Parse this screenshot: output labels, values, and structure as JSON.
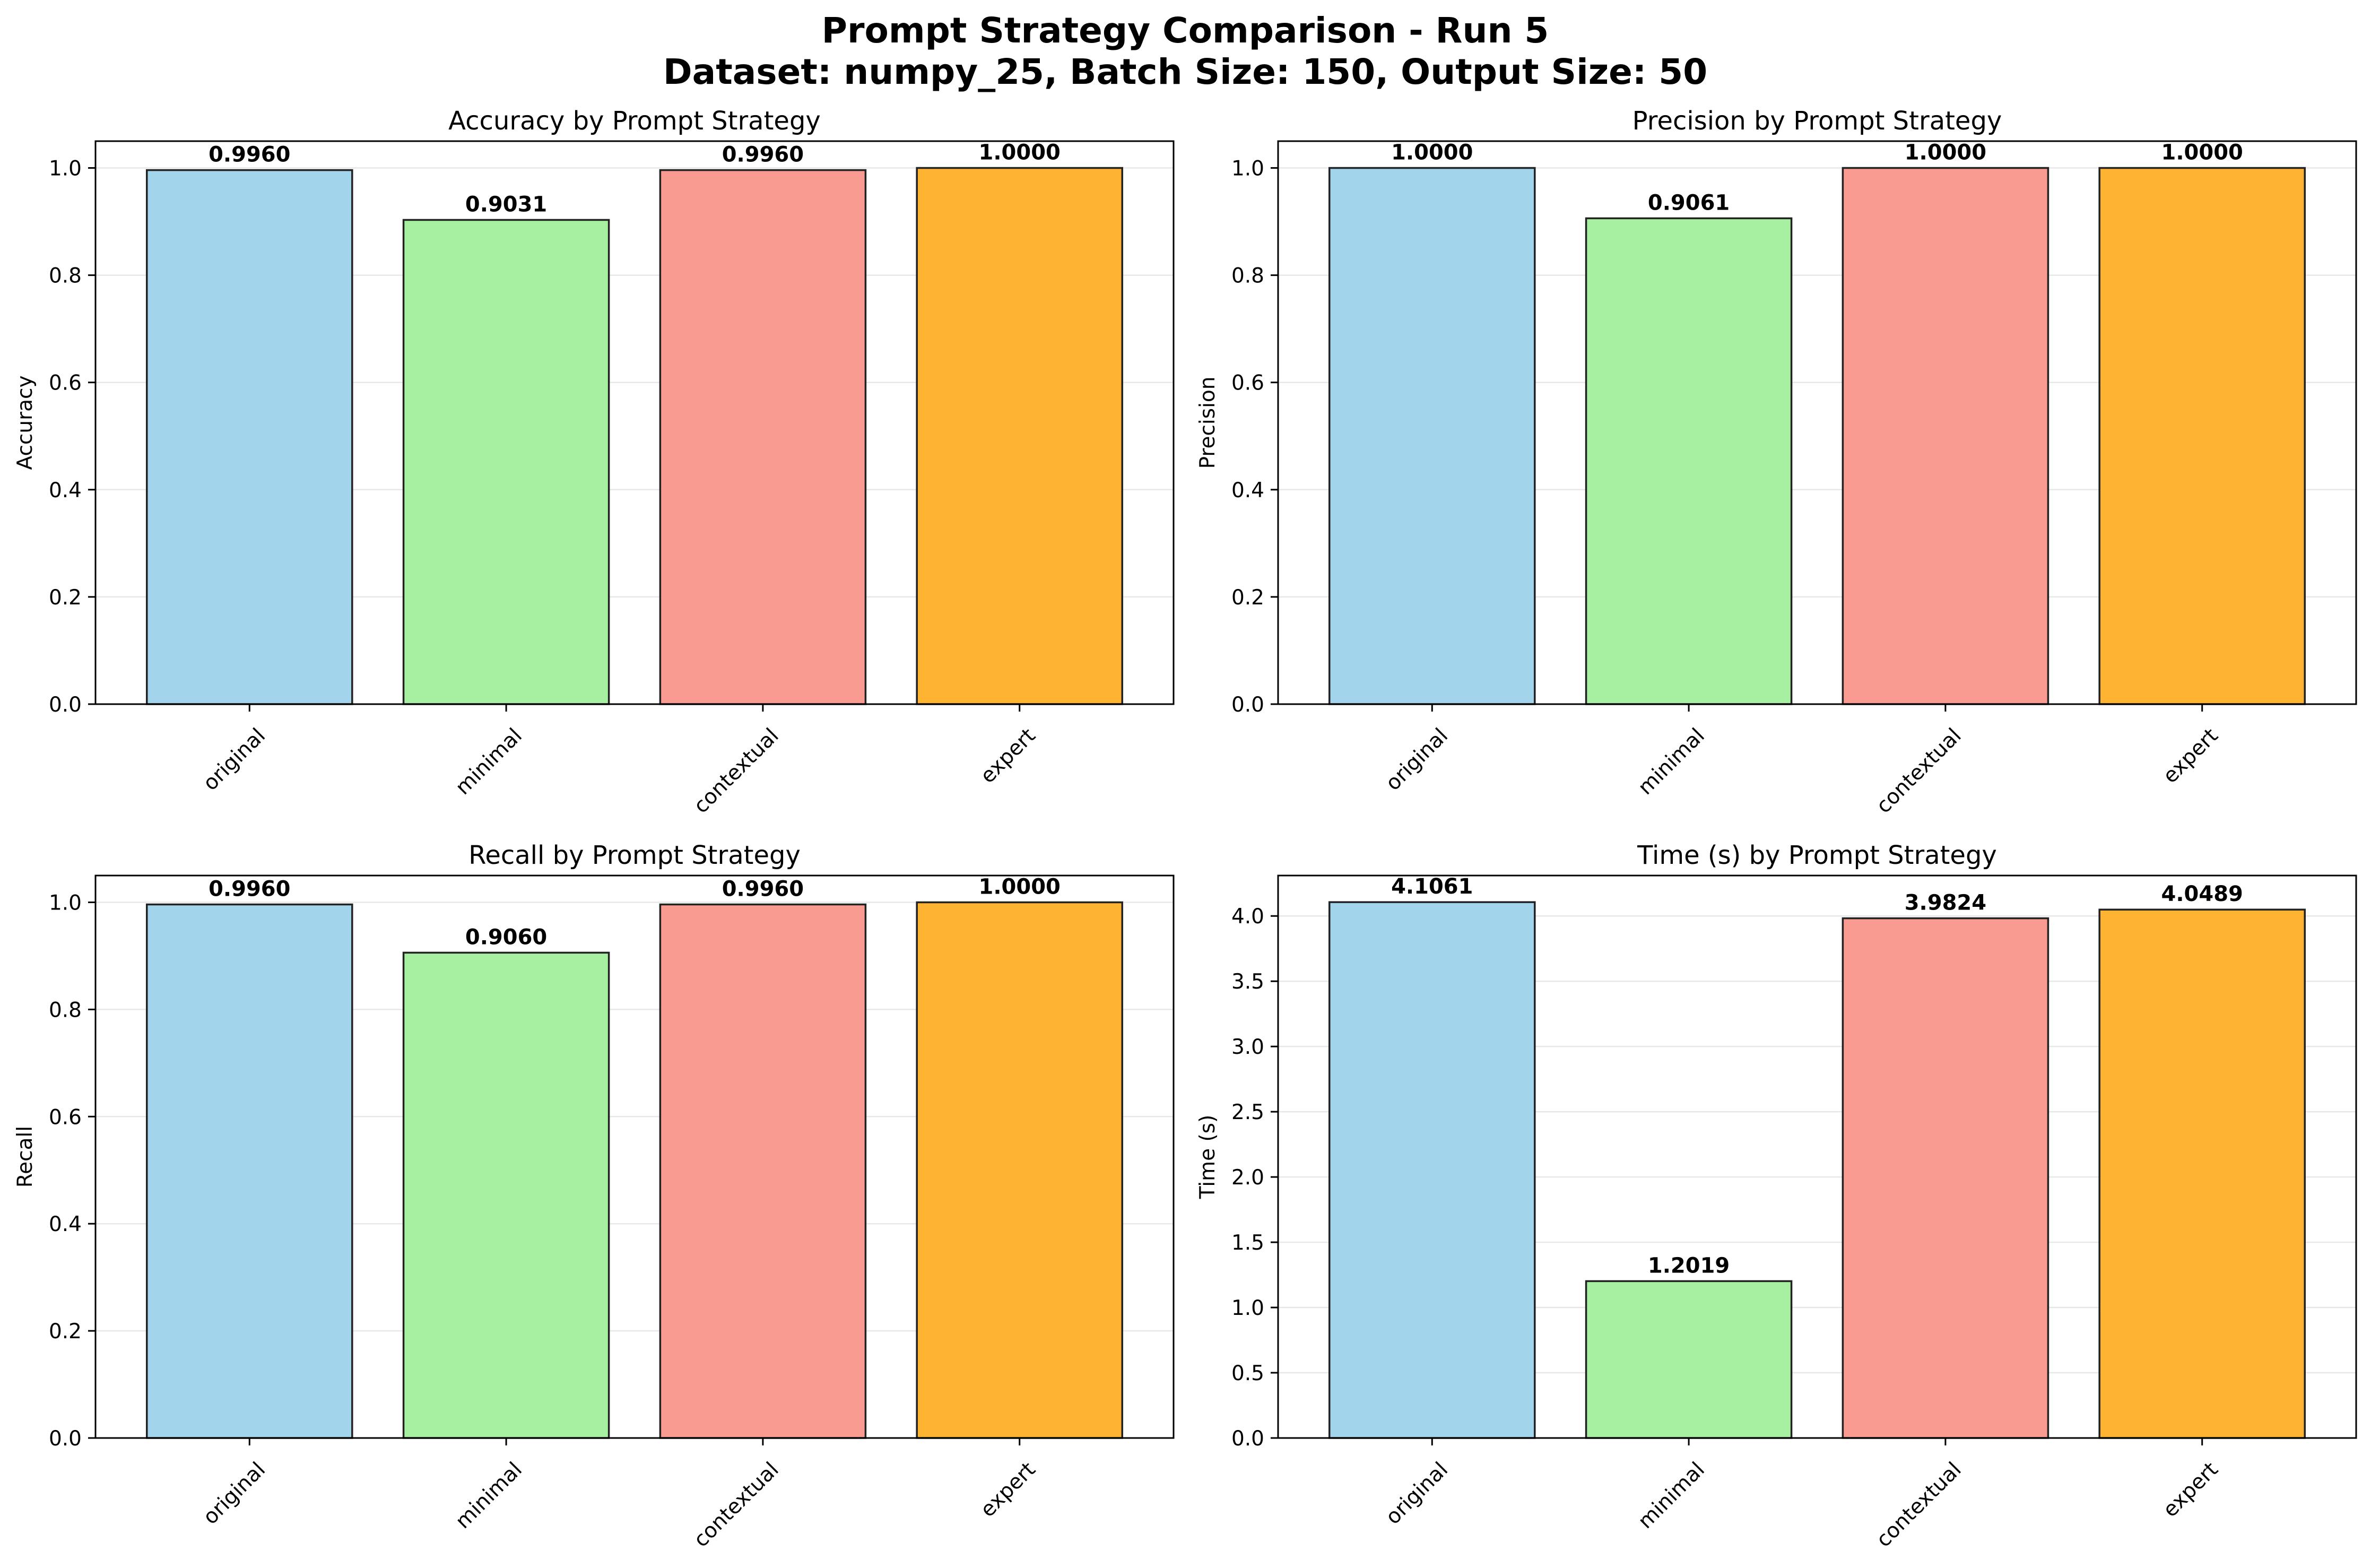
{
  "figure": {
    "title_line1": "Prompt Strategy Comparison - Run 5",
    "title_line2": "Dataset: numpy_25, Batch Size: 150, Output Size: 50"
  },
  "chart_data": [
    {
      "type": "bar",
      "title": "Accuracy by Prompt Strategy",
      "ylabel": "Accuracy",
      "xlabel": "",
      "categories": [
        "original",
        "minimal",
        "contextual",
        "expert"
      ],
      "values": [
        0.996,
        0.9031,
        0.996,
        1.0
      ],
      "value_labels": [
        "0.9960",
        "0.9031",
        "0.9960",
        "1.0000"
      ],
      "ylim": [
        0,
        1.05
      ],
      "yticks": [
        "0.0",
        "0.2",
        "0.4",
        "0.6",
        "0.8",
        "1.0"
      ],
      "ytick_values": [
        0,
        0.2,
        0.4,
        0.6,
        0.8,
        1.0
      ],
      "colors": [
        "#a2d4ec",
        "#a7f0a1",
        "#f99b90",
        "#feb432"
      ],
      "grid": "y"
    },
    {
      "type": "bar",
      "title": "Precision by Prompt Strategy",
      "ylabel": "Precision",
      "xlabel": "",
      "categories": [
        "original",
        "minimal",
        "contextual",
        "expert"
      ],
      "values": [
        1.0,
        0.9061,
        1.0,
        1.0
      ],
      "value_labels": [
        "1.0000",
        "0.9061",
        "1.0000",
        "1.0000"
      ],
      "ylim": [
        0,
        1.05
      ],
      "yticks": [
        "0.0",
        "0.2",
        "0.4",
        "0.6",
        "0.8",
        "1.0"
      ],
      "ytick_values": [
        0,
        0.2,
        0.4,
        0.6,
        0.8,
        1.0
      ],
      "colors": [
        "#a2d4ec",
        "#a7f0a1",
        "#f99b90",
        "#feb432"
      ],
      "grid": "y"
    },
    {
      "type": "bar",
      "title": "Recall by Prompt Strategy",
      "ylabel": "Recall",
      "xlabel": "",
      "categories": [
        "original",
        "minimal",
        "contextual",
        "expert"
      ],
      "values": [
        0.996,
        0.906,
        0.996,
        1.0
      ],
      "value_labels": [
        "0.9960",
        "0.9060",
        "0.9960",
        "1.0000"
      ],
      "ylim": [
        0,
        1.05
      ],
      "yticks": [
        "0.0",
        "0.2",
        "0.4",
        "0.6",
        "0.8",
        "1.0"
      ],
      "ytick_values": [
        0,
        0.2,
        0.4,
        0.6,
        0.8,
        1.0
      ],
      "colors": [
        "#a2d4ec",
        "#a7f0a1",
        "#f99b90",
        "#feb432"
      ],
      "grid": "y"
    },
    {
      "type": "bar",
      "title": "Time (s) by Prompt Strategy",
      "ylabel": "Time (s)",
      "xlabel": "",
      "categories": [
        "original",
        "minimal",
        "contextual",
        "expert"
      ],
      "values": [
        4.1061,
        1.2019,
        3.9824,
        4.0489
      ],
      "value_labels": [
        "4.1061",
        "1.2019",
        "3.9824",
        "4.0489"
      ],
      "ylim": [
        0,
        4.31
      ],
      "yticks": [
        "0.0",
        "0.5",
        "1.0",
        "1.5",
        "2.0",
        "2.5",
        "3.0",
        "3.5",
        "4.0"
      ],
      "ytick_values": [
        0,
        0.5,
        1.0,
        1.5,
        2.0,
        2.5,
        3.0,
        3.5,
        4.0
      ],
      "colors": [
        "#a2d4ec",
        "#a7f0a1",
        "#f99b90",
        "#feb432"
      ],
      "grid": "y"
    }
  ]
}
